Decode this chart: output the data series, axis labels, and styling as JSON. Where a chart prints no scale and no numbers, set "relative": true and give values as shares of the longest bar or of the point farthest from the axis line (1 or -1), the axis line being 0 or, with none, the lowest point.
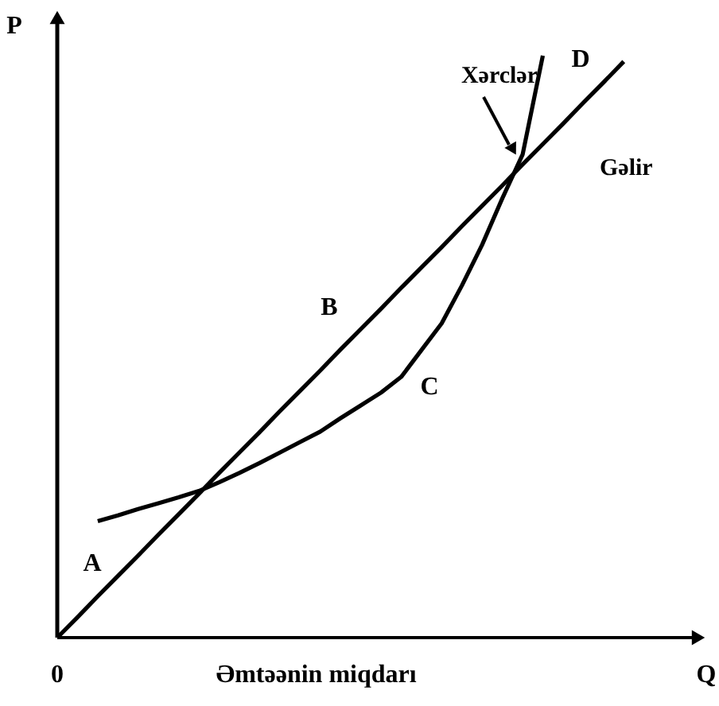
{
  "chart_data": {
    "type": "line",
    "relative": true,
    "ylabel": "P",
    "xlabel": "Q",
    "categories": [
      null,
      null,
      null,
      null,
      null,
      null,
      null,
      null,
      null,
      null,
      null,
      null,
      null,
      null,
      null,
      null,
      null,
      null,
      null,
      null,
      null,
      null,
      null,
      null,
      null,
      null,
      null,
      null,
      null,
      null,
      null,
      null,
      null
    ],
    "series": [
      {
        "name": "Gəlir",
        "color": "#000000",
        "values": [
          0,
          0.035,
          0.071,
          0.106,
          0.141,
          0.177,
          0.212,
          0.247,
          0.283,
          0.318,
          0.353,
          0.389,
          0.424,
          0.459,
          0.495,
          0.53,
          0.565,
          0.601,
          0.636,
          0.671,
          0.707,
          0.742,
          0.777,
          0.813,
          0.848,
          0.883,
          0.919,
          0.954,
          0.99,
          null,
          null,
          null,
          null
        ]
      },
      {
        "name": "Xərclər",
        "color": "#000000",
        "values": [
          null,
          null,
          0.2,
          0.21,
          0.221,
          0.231,
          0.241,
          0.252,
          0.267,
          0.283,
          0.3,
          0.318,
          0.336,
          0.354,
          0.377,
          0.399,
          0.421,
          0.448,
          0.494,
          0.54,
          0.605,
          0.675,
          0.755,
          0.83,
          1.0,
          null,
          null,
          null,
          null,
          null,
          null,
          null,
          null
        ]
      }
    ],
    "annotations": [
      "0",
      "Əmtəənin miqdarı",
      "A",
      "B",
      "C",
      "D"
    ],
    "marker": "none",
    "line_style": "solid"
  }
}
